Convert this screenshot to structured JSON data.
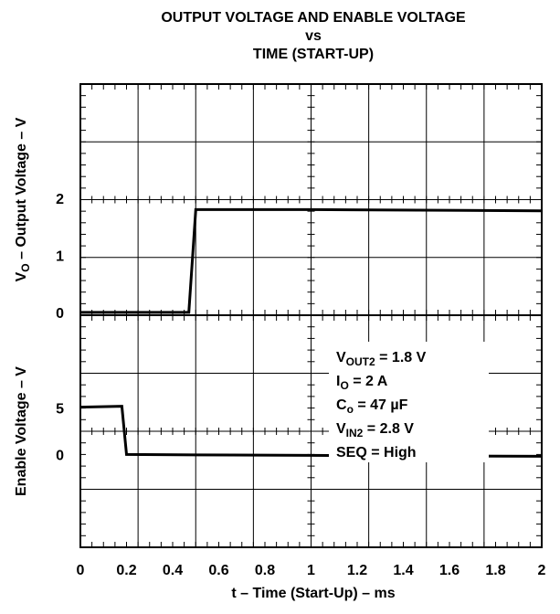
{
  "chart_data": {
    "type": "line",
    "title": [
      "OUTPUT VOLTAGE AND ENABLE VOLTAGE",
      "vs",
      "TIME (START-UP)"
    ],
    "xlabel": "t – Time (Start-Up) – ms",
    "xlim": [
      0,
      2
    ],
    "x_ticks": [
      "0",
      "0.2",
      "0.4",
      "0.6",
      "0.8",
      "1",
      "1.2",
      "1.4",
      "1.6",
      "1.8",
      "2"
    ],
    "grid": true,
    "panels": [
      {
        "id": "output",
        "ylabel": {
          "main": "V",
          "sub": "O",
          "rest": " – Output Voltage – V"
        },
        "ylim": [
          -0.05,
          4
        ],
        "y_ticks": [
          "0",
          "1",
          "2"
        ],
        "series": {
          "x": [
            0,
            0.47,
            0.5,
            1.0,
            2.0
          ],
          "y": [
            0,
            0,
            1.8,
            1.8,
            1.78
          ]
        }
      },
      {
        "id": "enable",
        "ylabel": {
          "main": "Enable Voltage – V"
        },
        "ylim": [
          -10,
          15
        ],
        "y_ticks": [
          "0",
          "5"
        ],
        "series": {
          "x": [
            0,
            0.18,
            0.2,
            0.5,
            1.0,
            2.0
          ],
          "y": [
            5.1,
            5.2,
            0,
            -0.05,
            -0.1,
            -0.2
          ]
        }
      }
    ],
    "annotations": [
      {
        "main": "V",
        "sub": "OUT2",
        "rest": " = 1.8 V"
      },
      {
        "main": "I",
        "sub": "O",
        "rest": " = 2 A"
      },
      {
        "main": "C",
        "sub": "o",
        "rest": " = 47 µF"
      },
      {
        "main": "V",
        "sub": "IN2",
        "rest": "  = 2.8 V"
      },
      {
        "main": "SEQ = High",
        "sub": "",
        "rest": ""
      }
    ],
    "colors": {
      "line": "#000000",
      "grid": "#000000",
      "background": "#ffffff"
    }
  }
}
